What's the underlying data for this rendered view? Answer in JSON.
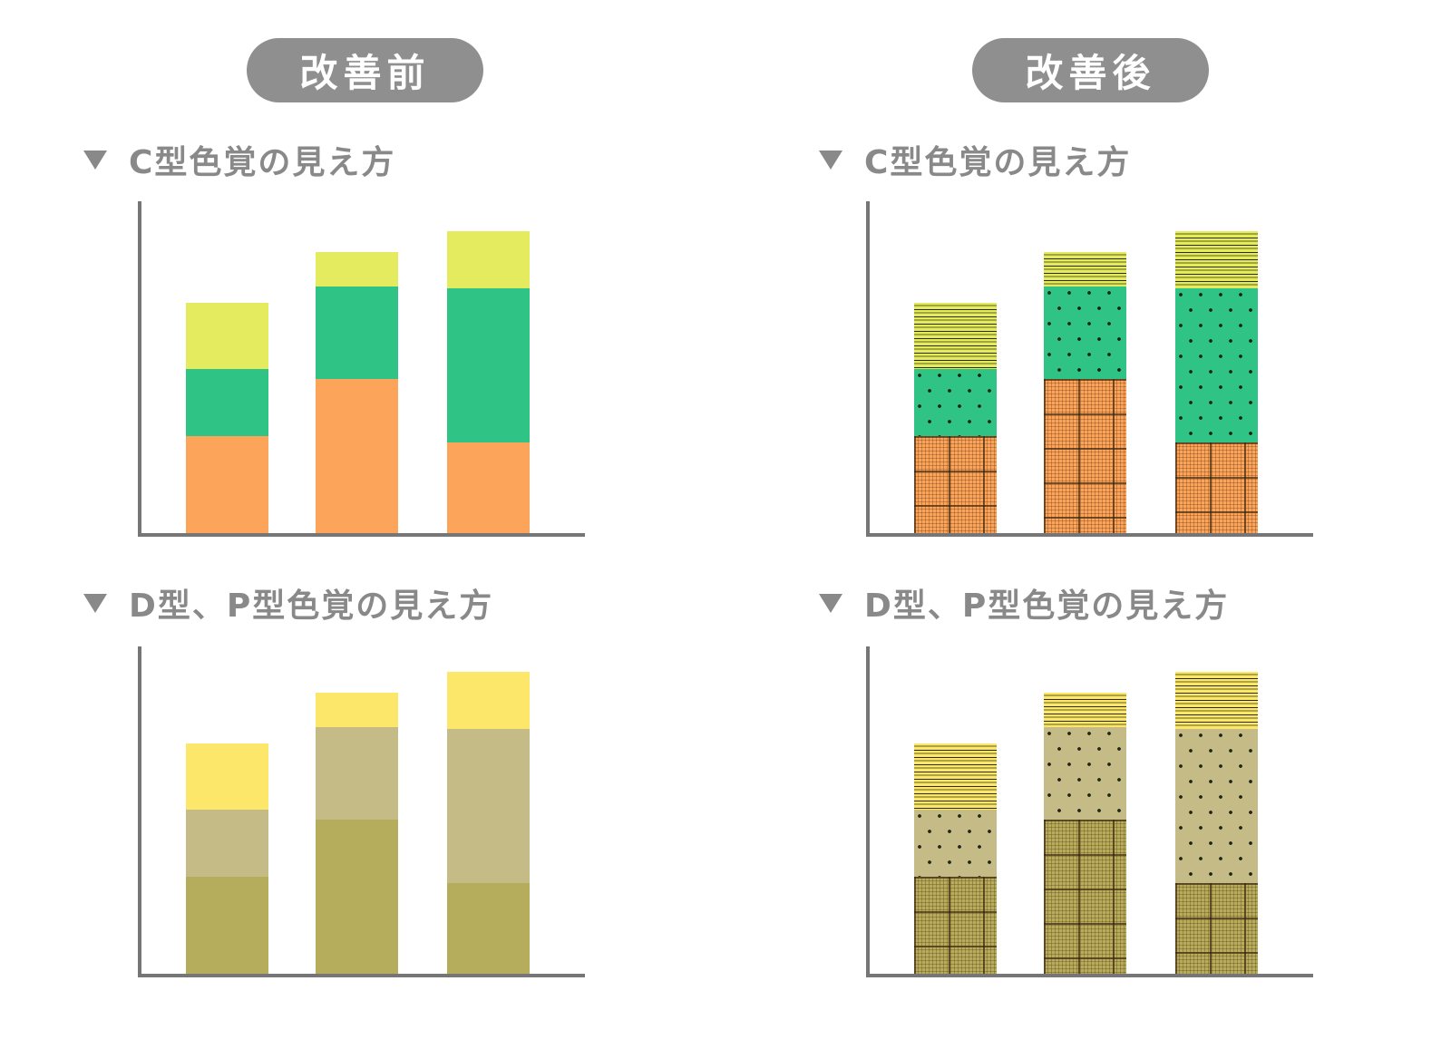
{
  "badges": {
    "before": "改善前",
    "after": "改善後"
  },
  "section_labels": {
    "c_type": "C型色覚の見え方",
    "dp_type": "D型、P型色覚の見え方"
  },
  "colors": {
    "badge_bg": "#8F8F8F",
    "badge_text": "#FFFFFF",
    "heading_text": "#898989",
    "axis": "#767676",
    "normal_palette": {
      "bottom": "#FBA45A",
      "middle": "#2FC385",
      "top": "#E4EB5E"
    },
    "dp_simulated_palette": {
      "bottom": "#B5AC5C",
      "middle": "#C5BB86",
      "top": "#FDE76A"
    }
  },
  "chart_data": [
    {
      "type": "bar",
      "stacked": true,
      "panel": "改善前",
      "section": "C型色覚の見え方",
      "categories": [
        "",
        "",
        ""
      ],
      "ylim": [
        0,
        100
      ],
      "axes": {
        "ticks": "none",
        "labels": "none",
        "grid": false
      },
      "legend": "none",
      "series": [
        {
          "name": "segment-bottom",
          "color": "#FBA45A",
          "pattern": "none",
          "values": [
            29,
            46,
            27
          ]
        },
        {
          "name": "segment-middle",
          "color": "#2FC385",
          "pattern": "none",
          "values": [
            20,
            27.5,
            46
          ]
        },
        {
          "name": "segment-top",
          "color": "#E4EB5E",
          "pattern": "none",
          "values": [
            19.7,
            10.3,
            17
          ]
        }
      ]
    },
    {
      "type": "bar",
      "stacked": true,
      "panel": "改善後",
      "section": "C型色覚の見え方",
      "categories": [
        "",
        "",
        ""
      ],
      "ylim": [
        0,
        100
      ],
      "axes": {
        "ticks": "none",
        "labels": "none",
        "grid": false
      },
      "legend": "none",
      "series": [
        {
          "name": "segment-bottom",
          "color": "#FBA45A",
          "pattern": "grid",
          "values": [
            29,
            46,
            27
          ]
        },
        {
          "name": "segment-middle",
          "color": "#2FC385",
          "pattern": "dots",
          "values": [
            20,
            27.5,
            46
          ]
        },
        {
          "name": "segment-top",
          "color": "#E4EB5E",
          "pattern": "hlines",
          "values": [
            19.7,
            10.3,
            17
          ]
        }
      ]
    },
    {
      "type": "bar",
      "stacked": true,
      "panel": "改善前",
      "section": "D型、P型色覚の見え方",
      "categories": [
        "",
        "",
        ""
      ],
      "ylim": [
        0,
        100
      ],
      "axes": {
        "ticks": "none",
        "labels": "none",
        "grid": false
      },
      "legend": "none",
      "series": [
        {
          "name": "segment-bottom",
          "color": "#B5AC5C",
          "pattern": "none",
          "values": [
            29,
            46,
            27
          ]
        },
        {
          "name": "segment-middle",
          "color": "#C5BB86",
          "pattern": "none",
          "values": [
            20,
            27.5,
            46
          ]
        },
        {
          "name": "segment-top",
          "color": "#FDE76A",
          "pattern": "none",
          "values": [
            19.7,
            10.3,
            17
          ]
        }
      ]
    },
    {
      "type": "bar",
      "stacked": true,
      "panel": "改善後",
      "section": "D型、P型色覚の見え方",
      "categories": [
        "",
        "",
        ""
      ],
      "ylim": [
        0,
        100
      ],
      "axes": {
        "ticks": "none",
        "labels": "none",
        "grid": false
      },
      "legend": "none",
      "series": [
        {
          "name": "segment-bottom",
          "color": "#B5AC5C",
          "pattern": "grid",
          "values": [
            29,
            46,
            27
          ]
        },
        {
          "name": "segment-middle",
          "color": "#C5BB86",
          "pattern": "dots",
          "values": [
            20,
            27.5,
            46
          ]
        },
        {
          "name": "segment-top",
          "color": "#FDE76A",
          "pattern": "hlines",
          "values": [
            19.7,
            10.3,
            17
          ]
        }
      ]
    }
  ]
}
